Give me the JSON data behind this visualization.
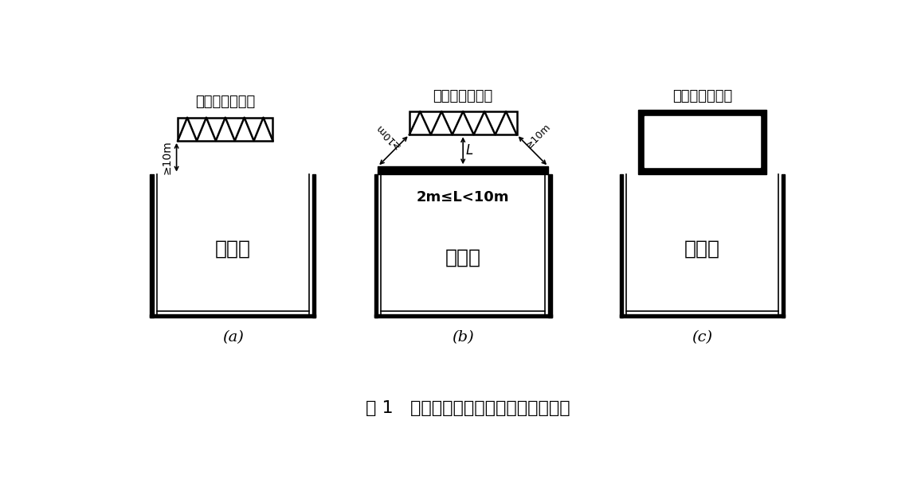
{
  "title": "图 1   除尘器或过滤器的平面布置示意图",
  "label_a": "(a)",
  "label_b": "(b)",
  "label_c": "(c)",
  "text_device": "除尘器或过滤器",
  "text_room": "主厂房",
  "text_b_cond": "2m≤L<10m",
  "bg_color": "#ffffff",
  "line_color": "#000000"
}
